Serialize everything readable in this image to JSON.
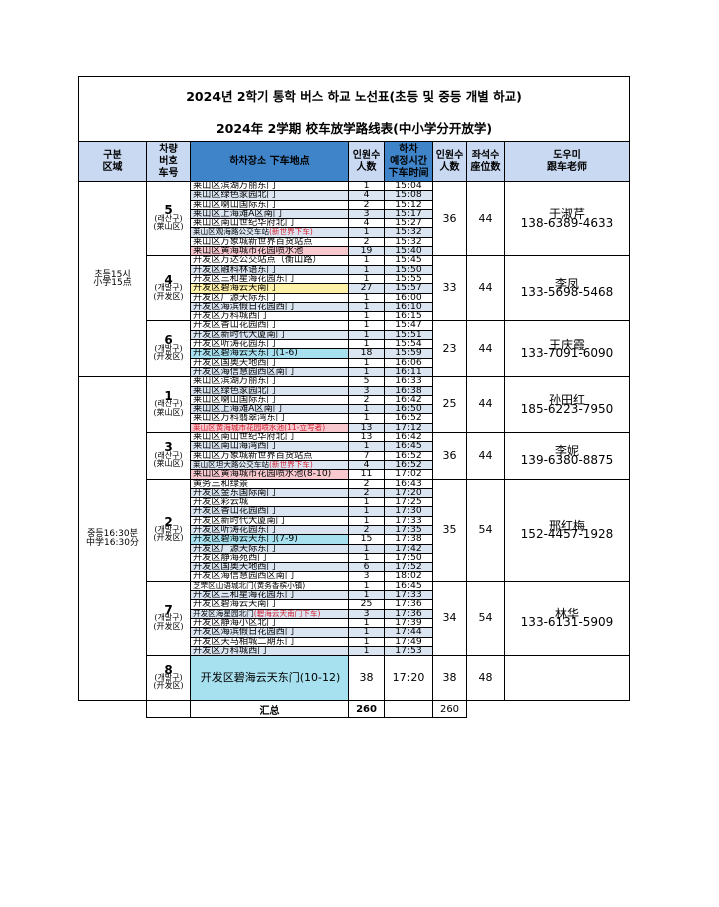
{
  "title_ko": "2024년 2학기 통학 버스 하교 노선표(초등 및 중등 개별 하교)",
  "title_zh": "2024年 2学期 校车放学路线表(中小学分开放学)",
  "headers": {
    "area": "구분\n区域",
    "bus": "차량\n버호\n车号",
    "place": "하차장소  下车地点",
    "count": "인원수\n人数",
    "time": "하차\n예정시간\n下车时间",
    "count2": "인원수\n人数",
    "seats": "좌석수\n座位数",
    "teacher": "도우미\n跟车老师"
  },
  "sections": [
    {
      "label": "초등15시\n小学15点"
    },
    {
      "label": "중등16:30분\n中学16:30分"
    }
  ],
  "groups": [
    {
      "bus": "5",
      "sub1": "(래산구)",
      "sub2": "(莱山区)",
      "total": "36",
      "seats": "44",
      "teacher_name": "于淑芹",
      "teacher_phone": "138-6389-4633",
      "stops": [
        {
          "place": "莱山区滨湖万丽东门",
          "n": "1",
          "t": "15:04"
        },
        {
          "place": "莱山区绿色家园北门",
          "n": "4",
          "t": "15:08"
        },
        {
          "place": "莱山区喇山国际东门",
          "n": "2",
          "t": "15:12"
        },
        {
          "place": "莱山区上海滩A区南门",
          "n": "3",
          "t": "15:17"
        },
        {
          "place": "莱山区南山世纪华府北门",
          "n": "4",
          "t": "15:27"
        },
        {
          "place": "莱山区观海路公交车站",
          "note": "(新世界下车)",
          "n": "1",
          "t": "15:32"
        },
        {
          "place": "莱山区万象城新世界百货站点",
          "n": "2",
          "t": "15:32"
        },
        {
          "place": "莱山区黄海城市花园喷水池",
          "n": "19",
          "t": "15:40"
        }
      ]
    },
    {
      "bus": "4",
      "sub1": "(개발구)",
      "sub2": "(开发区)",
      "total": "33",
      "seats": "44",
      "teacher_name": "李凤",
      "teacher_phone": "133-5698-5468",
      "stops": [
        {
          "place": "开发区万达公交站点（衡山路）",
          "n": "1",
          "t": "15:45"
        },
        {
          "place": "开发区融科林语东门",
          "n": "1",
          "t": "15:50"
        },
        {
          "place": "开发区三和星海花园东门",
          "n": "1",
          "t": "15:55"
        },
        {
          "place": "开发区碧海云天南门",
          "n": "27",
          "t": "15:57"
        },
        {
          "place": "开发区广源天际东门",
          "n": "1",
          "t": "16:00"
        },
        {
          "place": "开发区海滨假日花园西门",
          "n": "1",
          "t": "16:10"
        },
        {
          "place": "开发区万科城西门",
          "n": "1",
          "t": "16:15"
        }
      ]
    },
    {
      "bus": "6",
      "sub1": "(개발구)",
      "sub2": "(开发区)",
      "total": "23",
      "seats": "44",
      "teacher_name": "王庆霞",
      "teacher_phone": "133-7091-6090",
      "stops": [
        {
          "place": "开发区香山花园西门",
          "n": "1",
          "t": "15:47"
        },
        {
          "place": "开发区新时代大厦南门",
          "n": "1",
          "t": "15:51"
        },
        {
          "place": "开发区听涛花园东门",
          "n": "1",
          "t": "15:54"
        },
        {
          "place": "开发区碧海云天东门(1-6)",
          "n": "18",
          "t": "15:59"
        },
        {
          "place": "开发区国奥天地西门",
          "n": "1",
          "t": "16:06"
        },
        {
          "place": "开发区海信慧园西区南门",
          "n": "1",
          "t": "16:11"
        }
      ]
    },
    {
      "bus": "1",
      "sub1": "(래산구)",
      "sub2": "(莱山区)",
      "total": "25",
      "seats": "44",
      "teacher_name": "孙田红",
      "teacher_phone": "185-6223-7950",
      "stops": [
        {
          "place": "莱山区滨湖万丽东门",
          "n": "5",
          "t": "16:33"
        },
        {
          "place": "莱山区绿色家园北门",
          "n": "3",
          "t": "16:38"
        },
        {
          "place": "莱山区喇山国际东门",
          "n": "2",
          "t": "16:42"
        },
        {
          "place": "莱山区上海滩A区南门",
          "n": "1",
          "t": "16:50"
        },
        {
          "place": "莱山区万科翡翠湾东门",
          "n": "1",
          "t": "16:52"
        },
        {
          "place": "莱山区黄海城市花园喷水池(11-立写者)",
          "n": "13",
          "t": "17:12"
        }
      ]
    },
    {
      "bus": "3",
      "sub1": "(래산구)",
      "sub2": "(莱山区)",
      "total": "36",
      "seats": "44",
      "teacher_name": "李妮",
      "teacher_phone": "139-6380-8875",
      "stops": [
        {
          "place": "莱山区南山世纪华府北门",
          "n": "13",
          "t": "16:42"
        },
        {
          "place": "莱山区南山海湾西门",
          "n": "1",
          "t": "16:45"
        },
        {
          "place": "莱山区万象城新世界百货站点",
          "n": "7",
          "t": "16:52"
        },
        {
          "place": "莱山区坦大路公交车站",
          "note": "(新世界下车)",
          "n": "4",
          "t": "16:52"
        },
        {
          "place": "莱山区黄海城市花园喷水池(8-10)",
          "n": "11",
          "t": "17:02"
        }
      ]
    },
    {
      "bus": "2",
      "sub1": "(개발구)",
      "sub2": "(开发区)",
      "total": "35",
      "seats": "54",
      "teacher_name": "邢红梅",
      "teacher_phone": "152-4457-1928",
      "stops": [
        {
          "place": "黄务三和绿景",
          "n": "2",
          "t": "16:43"
        },
        {
          "place": "开发区金东国际南门",
          "n": "2",
          "t": "17:20"
        },
        {
          "place": "开发区彩云城",
          "n": "1",
          "t": "17:25"
        },
        {
          "place": "开发区香山花园西门",
          "n": "1",
          "t": "17:30"
        },
        {
          "place": "开发区新时代大厦南门",
          "n": "1",
          "t": "17:33"
        },
        {
          "place": "开发区听涛花园东门",
          "n": "2",
          "t": "17:35"
        },
        {
          "place": "开发区碧海云天东门(7-9)",
          "n": "15",
          "t": "17:38"
        },
        {
          "place": "开发区广源天际东门",
          "n": "1",
          "t": "17:42"
        },
        {
          "place": "开发区静海苑西门",
          "n": "1",
          "t": "17:50"
        },
        {
          "place": "开发区国奥天地西门",
          "n": "6",
          "t": "17:52"
        },
        {
          "place": "开发区海信慧园西区南门",
          "n": "3",
          "t": "18:02"
        }
      ]
    },
    {
      "bus": "7",
      "sub1": "(개발구)",
      "sub2": "(开发区)",
      "total": "34",
      "seats": "54",
      "teacher_name": "林华",
      "teacher_phone": "133-6131-5909",
      "stops": [
        {
          "place": "芝罘区山语城北门(黄务香槟小镇)",
          "n": "1",
          "t": "16:45"
        },
        {
          "place": "开发区三和星海花园东门",
          "n": "1",
          "t": "17:33"
        },
        {
          "place": "开发区碧海云天南门",
          "n": "25",
          "t": "17:36"
        },
        {
          "place": "开发区海星园北门",
          "note": "(碧海云天南门下车)",
          "n": "3",
          "t": "17:36"
        },
        {
          "place": "开发区静海小区北门",
          "n": "1",
          "t": "17:39"
        },
        {
          "place": "开发区海滨假日花园西门",
          "n": "1",
          "t": "17:44"
        },
        {
          "place": "开发区天马相城二期东门",
          "n": "1",
          "t": "17:49"
        },
        {
          "place": "开发区万科城西门",
          "n": "1",
          "t": "17:53"
        }
      ]
    },
    {
      "bus": "8",
      "sub1": "(개발구)",
      "sub2": "(开发区)",
      "place": "开发区碧海云天东门(10-12)",
      "n": "38",
      "t": "17:20",
      "total": "38",
      "seats": "48"
    }
  ],
  "footer": {
    "label": "汇总",
    "sum": "260",
    "sum2": "260"
  },
  "colors": {
    "header_blue": "#3f84c8",
    "header_light": "#c9d9f2",
    "row_alt": "#dbe5f1",
    "highlight_yellow": "#fff2a8",
    "highlight_pink": "#f7c9cf",
    "highlight_cyan": "#a7e1ef",
    "note_red": "#d1202f"
  }
}
